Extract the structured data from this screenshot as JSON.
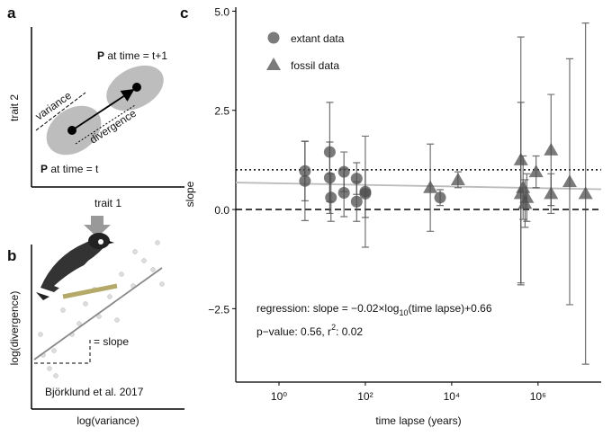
{
  "panel_labels": [
    "a",
    "b",
    "c"
  ],
  "panel_a": {
    "y_label": "trait 2",
    "x_label": "trait 1",
    "top_state": {
      "bold": "P",
      "text": " at time = t+1"
    },
    "bottom_state": {
      "bold": "P",
      "text": " at time = t"
    },
    "variance": "variance",
    "divergence": "divergence"
  },
  "panel_b": {
    "y_label": "log(divergence)",
    "x_label": "log(variance)",
    "slope_note": "= slope",
    "source": "Björklund et al. 2017"
  },
  "chart_data": {
    "type": "scatter",
    "x_label": "time lapse (years)",
    "y_label": "slope",
    "xlim": [
      0.1,
      29000000
    ],
    "ylim": [
      -4.35,
      5.1
    ],
    "x_log": true,
    "xticks": [
      {
        "value": 1,
        "label": "10⁰"
      },
      {
        "value": 100,
        "label": "10²"
      },
      {
        "value": 10000,
        "label": "10⁴"
      },
      {
        "value": 1000000,
        "label": "10⁶"
      }
    ],
    "yticks": [
      {
        "value": -2.5,
        "label": "−2.5"
      },
      {
        "value": 0,
        "label": "0.0"
      },
      2.5,
      {
        "value": 5,
        "label": "5.0"
      }
    ],
    "legend": "top-left",
    "series": [
      {
        "name": "extant data",
        "marker": "circle",
        "color": "#4d4d4d",
        "x": [
          4,
          4,
          15,
          15,
          16,
          32,
          32,
          63,
          63,
          100,
          100,
          5400
        ],
        "values": [
          0.97,
          0.72,
          1.45,
          0.8,
          0.3,
          0.95,
          0.42,
          0.78,
          0.2,
          0.45,
          0.4,
          0.3
        ],
        "errors": [
          0.75,
          1.0,
          1.25,
          0.9,
          0.6,
          0.5,
          0.6,
          0.4,
          0.5,
          1.4,
          0.6,
          0.2
        ]
      },
      {
        "name": "fossil data",
        "marker": "triangle",
        "color": "#4d4d4d",
        "x": [
          3200,
          14000,
          400000,
          400000,
          450000,
          500000,
          550000,
          900000,
          2000000,
          2000000,
          5400000,
          12600000
        ],
        "values": [
          0.55,
          0.75,
          1.25,
          0.4,
          0.55,
          0.15,
          0.3,
          0.95,
          1.5,
          0.4,
          0.7,
          0.4
        ],
        "errors": [
          1.1,
          0.2,
          3.1,
          2.3,
          0.8,
          0.6,
          0.6,
          0.4,
          1.4,
          0.5,
          3.1,
          4.3
        ]
      }
    ],
    "regression": {
      "slope": -0.02,
      "intercept": 0.66,
      "color": "#bbbbbb"
    },
    "reference_lines": [
      {
        "value": 1,
        "style": "dotted"
      },
      {
        "value": 0,
        "style": "dashed"
      }
    ],
    "annotation_line1": [
      "regression: slope = −0.02×log",
      "10",
      "(time lapse)+0.66"
    ],
    "annotation_line2": [
      "p−value: 0.56, r",
      "2",
      ": 0.02"
    ]
  }
}
